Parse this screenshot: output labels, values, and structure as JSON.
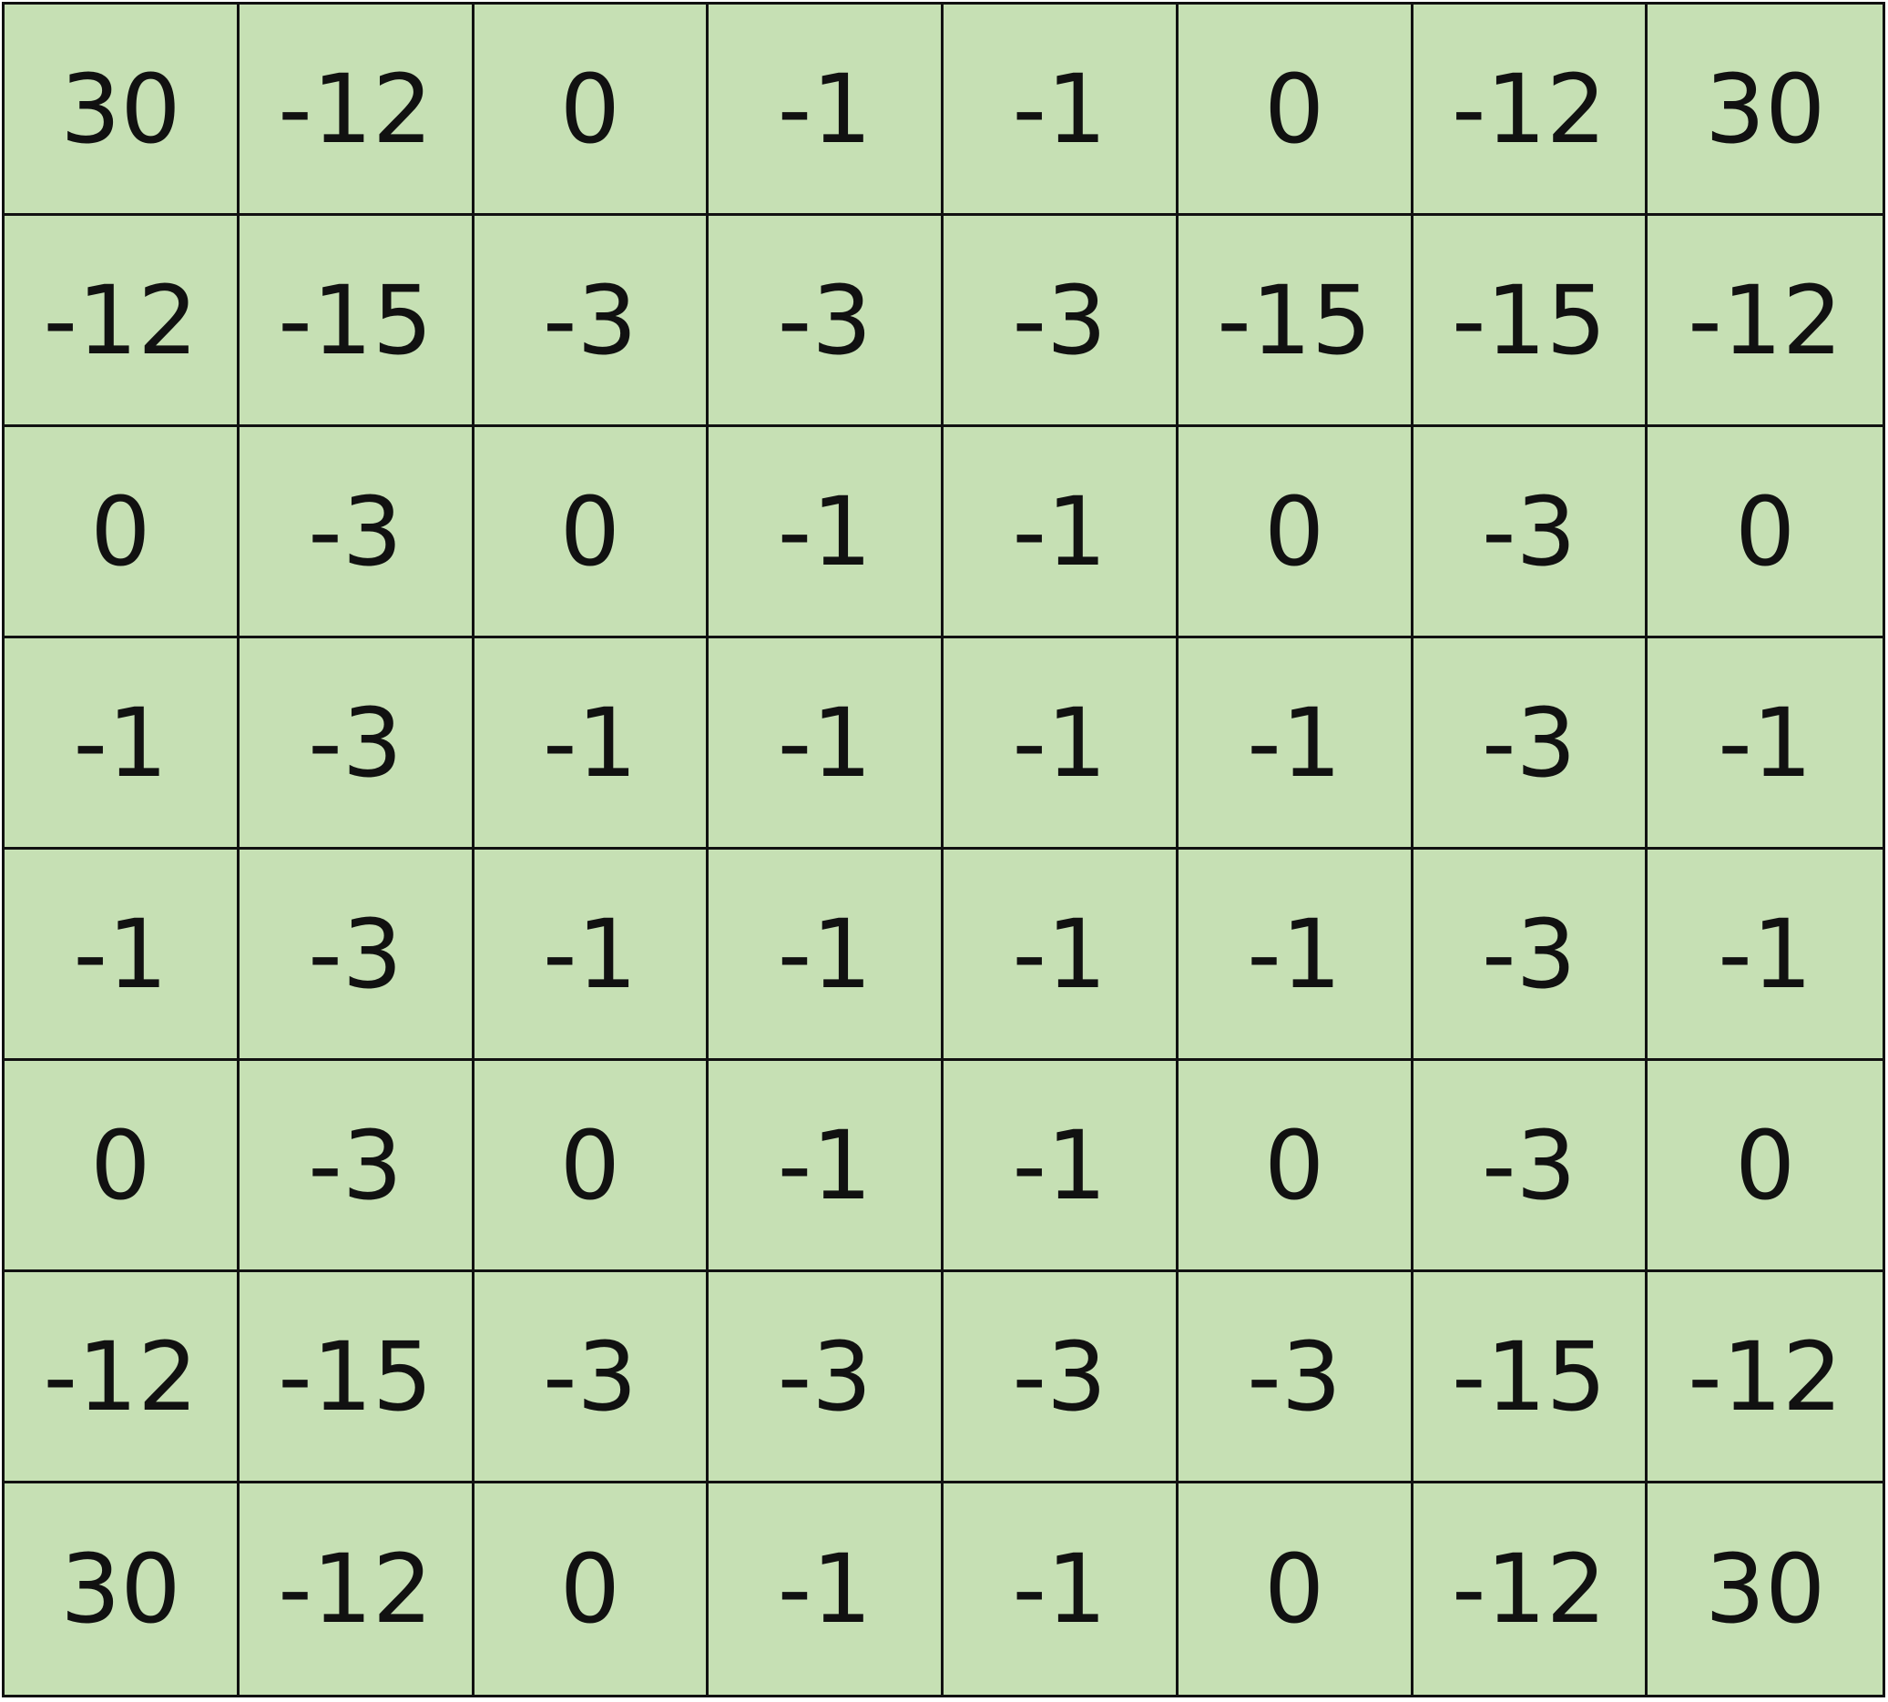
{
  "table": {
    "background": "#c6e0b4",
    "rows": [
      [
        "30",
        "-12",
        "0",
        "-1",
        "-1",
        "0",
        "-12",
        "30"
      ],
      [
        "-12",
        "-15",
        "-3",
        "-3",
        "-3",
        "-15",
        "-15",
        "-12"
      ],
      [
        "0",
        "-3",
        "0",
        "-1",
        "-1",
        "0",
        "-3",
        "0"
      ],
      [
        "-1",
        "-3",
        "-1",
        "-1",
        "-1",
        "-1",
        "-3",
        "-1"
      ],
      [
        "-1",
        "-3",
        "-1",
        "-1",
        "-1",
        "-1",
        "-3",
        "-1"
      ],
      [
        "0",
        "-3",
        "0",
        "-1",
        "-1",
        "0",
        "-3",
        "0"
      ],
      [
        "-12",
        "-15",
        "-3",
        "-3",
        "-3",
        "-3",
        "-15",
        "-12"
      ],
      [
        "30",
        "-12",
        "0",
        "-1",
        "-1",
        "0",
        "-12",
        "30"
      ]
    ]
  }
}
